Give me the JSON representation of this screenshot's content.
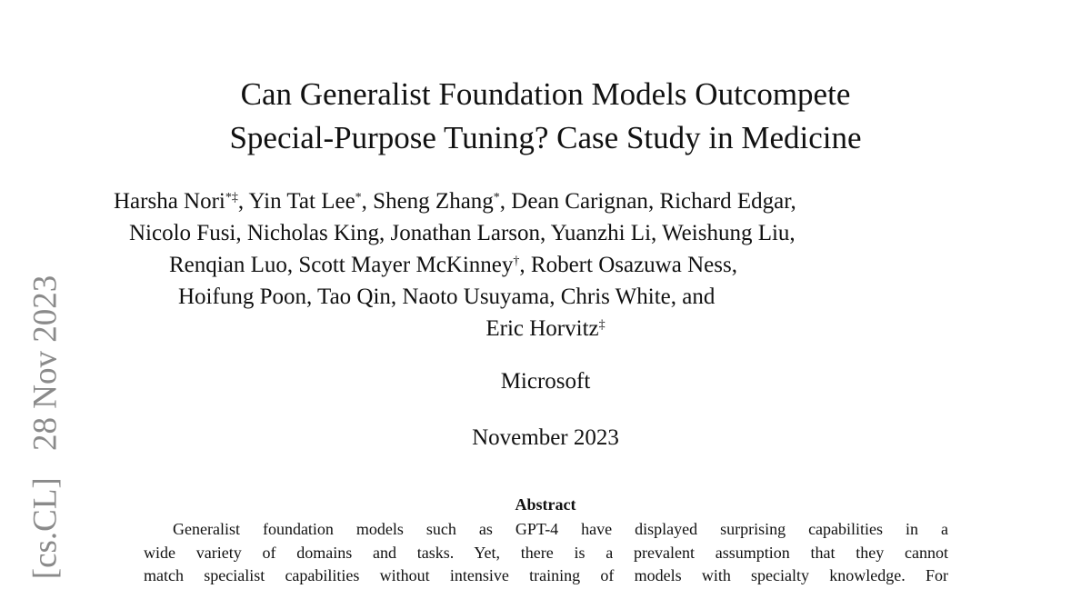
{
  "title_lines": [
    "Can Generalist Foundation Models Outcompete",
    "Special-Purpose Tuning? Case Study in Medicine"
  ],
  "author_lines": [
    [
      {
        "name": "Harsha Nori",
        "mark": "*‡",
        "sep": ", "
      },
      {
        "name": "Yin Tat Lee",
        "mark": "*",
        "sep": ", "
      },
      {
        "name": "Sheng Zhang",
        "mark": "*",
        "sep": ", "
      },
      {
        "name": "Dean Carignan",
        "mark": "",
        "sep": ", "
      },
      {
        "name": "Richard Edgar",
        "mark": "",
        "sep": ","
      }
    ],
    [
      {
        "name": "Nicolo Fusi",
        "mark": "",
        "sep": ", "
      },
      {
        "name": "Nicholas King",
        "mark": "",
        "sep": ", "
      },
      {
        "name": "Jonathan Larson",
        "mark": "",
        "sep": ", "
      },
      {
        "name": "Yuanzhi Li",
        "mark": "",
        "sep": ", "
      },
      {
        "name": "Weishung Liu",
        "mark": "",
        "sep": ","
      }
    ],
    [
      {
        "name": "Renqian Luo",
        "mark": "",
        "sep": ", "
      },
      {
        "name": "Scott Mayer McKinney",
        "mark": "†",
        "sep": ", "
      },
      {
        "name": "Robert Osazuwa Ness",
        "mark": "",
        "sep": ","
      }
    ],
    [
      {
        "name": "Hoifung Poon",
        "mark": "",
        "sep": ", "
      },
      {
        "name": "Tao Qin",
        "mark": "",
        "sep": ", "
      },
      {
        "name": "Naoto Usuyama",
        "mark": "",
        "sep": ", "
      },
      {
        "name": "Chris White",
        "mark": "",
        "sep": ", and"
      }
    ],
    [
      {
        "name": "Eric Horvitz",
        "mark": "‡",
        "sep": ""
      }
    ]
  ],
  "affiliation": "Microsoft",
  "date": "November 2023",
  "abstract_heading": "Abstract",
  "abstract_lines": [
    "Generalist foundation models such as GPT-4 have displayed surprising capabilities in a",
    "wide variety of domains and tasks.  Yet, there is a prevalent assumption that they cannot",
    "match specialist capabilities without intensive training of models with specialty knowledge.  For"
  ],
  "arxiv_stamp": {
    "category": "[cs.CL]",
    "date": "28 Nov 2023"
  }
}
